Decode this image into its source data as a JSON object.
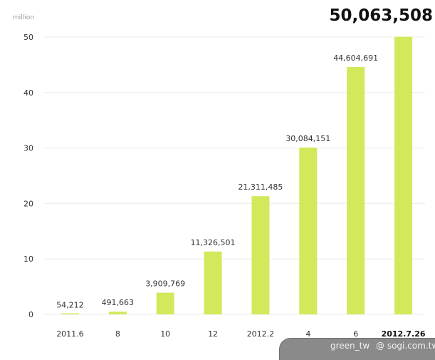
{
  "chart_data": {
    "type": "bar",
    "unit_label": "million",
    "categories": [
      "2011.6",
      "8",
      "10",
      "12",
      "2012.2",
      "4",
      "6",
      "2012.7.26"
    ],
    "values": [
      54212,
      491663,
      3909769,
      11326501,
      21311485,
      30084151,
      44604691,
      50063508
    ],
    "data_labels": [
      "54,212",
      "491,663",
      "3,909,769",
      "11,326,501",
      "21,311,485",
      "30,084,151",
      "44,604,691",
      "50,063,508"
    ],
    "y_ticks": [
      0,
      10,
      20,
      30,
      40,
      50
    ],
    "ylim": [
      0,
      50000000
    ],
    "grid": true,
    "bar_color": "#d4e85b",
    "highlight_last": true
  },
  "credits": {
    "user": "green_tw",
    "site": "@ sogi.com.tw"
  },
  "colors": {
    "footer_bg": "#8a8a8a",
    "credit_text": "#f2f2f2"
  }
}
